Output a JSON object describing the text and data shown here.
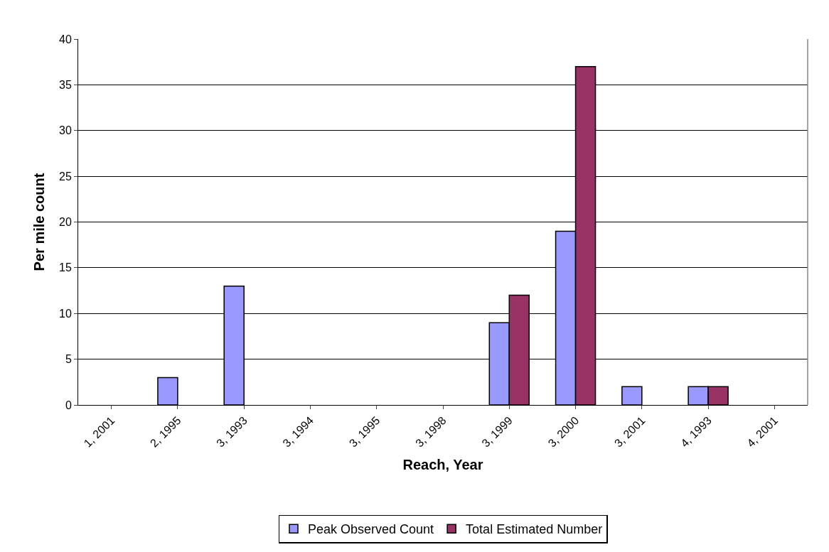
{
  "chart_data": {
    "type": "bar",
    "xlabel": "Reach, Year",
    "ylabel": "Per mile count",
    "categories": [
      "1, 2001",
      "2, 1995",
      "3, 1993",
      "3, 1994",
      "3, 1995",
      "3, 1998",
      "3, 1999",
      "3, 2000",
      "3, 2001",
      "4, 1993",
      "4, 2001"
    ],
    "series": [
      {
        "name": "Peak Observed Count",
        "color": "#9999ff",
        "values": [
          null,
          3,
          13,
          null,
          null,
          null,
          9,
          19,
          2,
          2,
          null
        ]
      },
      {
        "name": "Total Estimated Number",
        "color": "#993366",
        "values": [
          null,
          null,
          null,
          null,
          null,
          null,
          12,
          37,
          null,
          2,
          null
        ]
      }
    ],
    "ylim": [
      0,
      40
    ],
    "yticks": [
      0,
      5,
      10,
      15,
      20,
      25,
      30,
      35,
      40
    ],
    "grid": "y",
    "legend": "bottom"
  }
}
